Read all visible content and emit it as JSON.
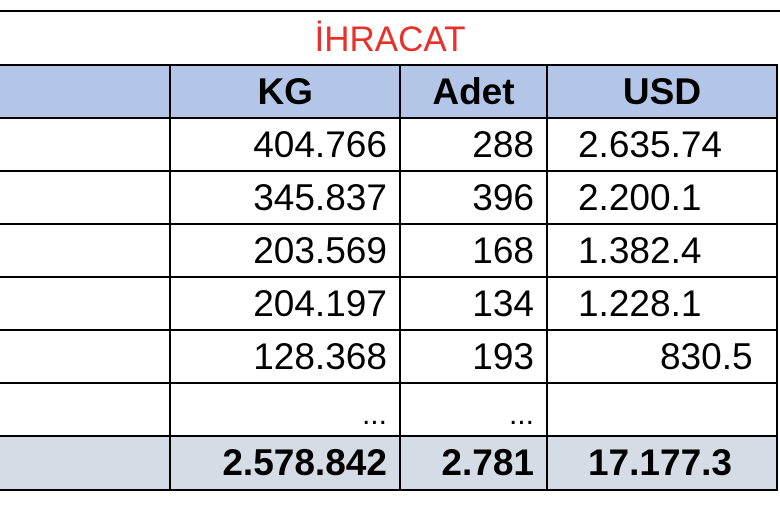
{
  "title": "İHRACAT",
  "colors": {
    "title": "#e8312a",
    "header_bg": "#b4c6e7",
    "total_bg": "#d6dce5",
    "border": "#000000"
  },
  "headers": {
    "name": "",
    "kg": "KG",
    "adet": "Adet",
    "usd": "USD"
  },
  "rows": [
    {
      "name": "",
      "kg": "404.766",
      "adet": "288",
      "usd": "2.635.74"
    },
    {
      "name": "",
      "kg": "345.837",
      "adet": "396",
      "usd": "2.200.1"
    },
    {
      "name": "",
      "kg": "203.569",
      "adet": "168",
      "usd": "1.382.4"
    },
    {
      "name": "",
      "kg": "204.197",
      "adet": "134",
      "usd": "1.228.1"
    },
    {
      "name": "",
      "kg": "128.368",
      "adet": "193",
      "usd": "830.5"
    }
  ],
  "ellipsis_row": {
    "kg": "...",
    "adet": "...",
    "usd": ""
  },
  "totals": {
    "name": "",
    "kg": "2.578.842",
    "adet": "2.781",
    "usd": "17.177.3"
  }
}
